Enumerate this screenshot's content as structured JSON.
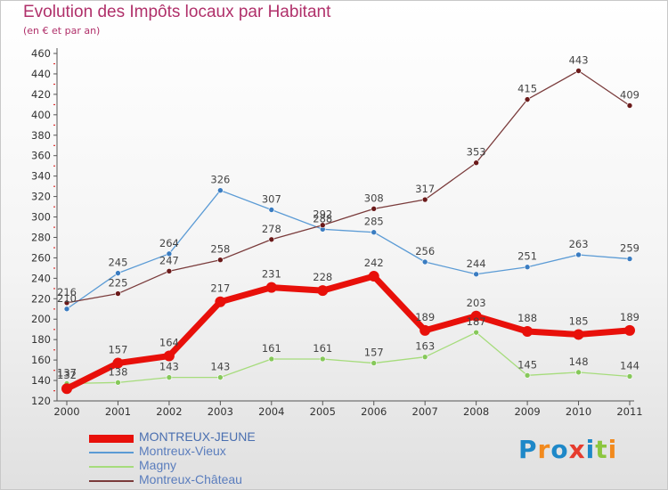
{
  "header": {
    "title": "Evolution des Impôts locaux par Habitant",
    "subtitle": "(en € et par an)"
  },
  "brand": {
    "text": "Proxiti",
    "colors": [
      "#1e88c8",
      "#f28a1e",
      "#1e88c8",
      "#e63c2e",
      "#1e88c8",
      "#8cc63f",
      "#f28a1e"
    ]
  },
  "chart_data": {
    "type": "line",
    "title": "Evolution des Impôts locaux par Habitant",
    "subtitle": "(en € et par an)",
    "xlabel": "",
    "ylabel": "",
    "ylim": [
      120,
      460
    ],
    "ytick_step": 20,
    "grid": false,
    "legend_position": "bottom-left",
    "x": [
      "2000",
      "2001",
      "2002",
      "2003",
      "2004",
      "2005",
      "2006",
      "2007",
      "2008",
      "2009",
      "2010",
      "2011"
    ],
    "series": [
      {
        "name": "MONTREUX-JEUNE",
        "color": "#e8100a",
        "marker": "#e8100a",
        "bold": true,
        "values": [
          132,
          157,
          164,
          217,
          231,
          228,
          242,
          189,
          203,
          188,
          185,
          189
        ]
      },
      {
        "name": "Montreux-Vieux",
        "color": "#5b9bd5",
        "marker": "#3a7cc1",
        "bold": false,
        "values": [
          210,
          245,
          264,
          326,
          307,
          288,
          285,
          256,
          244,
          251,
          263,
          259
        ]
      },
      {
        "name": "Magny",
        "color": "#a6dc7c",
        "marker": "#86c85a",
        "bold": false,
        "values": [
          137,
          138,
          143,
          143,
          161,
          161,
          157,
          163,
          187,
          145,
          148,
          144
        ]
      },
      {
        "name": "Montreux-Château",
        "color": "#7a3b3b",
        "marker": "#6b1a1a",
        "bold": false,
        "values": [
          216,
          225,
          247,
          258,
          278,
          292,
          308,
          317,
          353,
          415,
          443,
          409
        ]
      }
    ]
  }
}
